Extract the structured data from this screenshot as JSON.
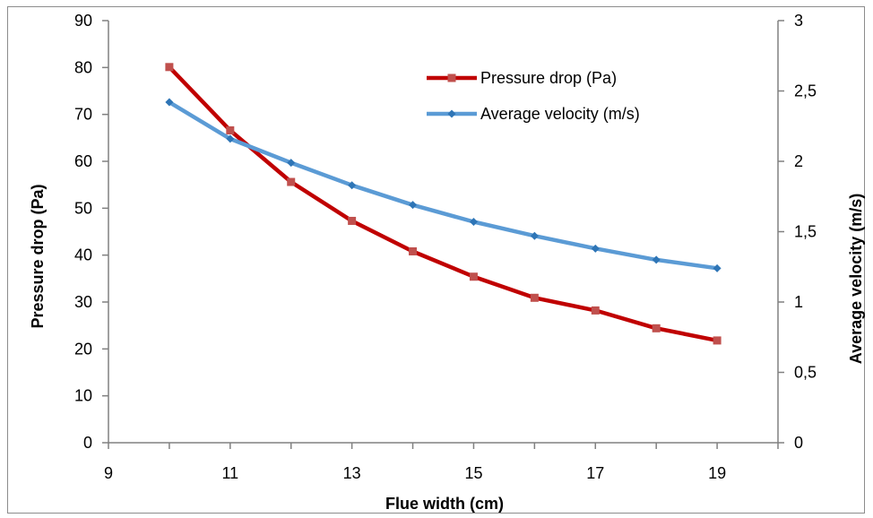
{
  "chart_data": {
    "type": "line",
    "title": "",
    "xlabel": "Flue width (cm)",
    "ylabel": "Pressure drop (Pa)",
    "y2label": "Average velocity (m/s)",
    "xlim": [
      9,
      20
    ],
    "ylim": [
      0,
      90
    ],
    "y2lim": [
      0,
      3
    ],
    "x_ticks": [
      "9",
      "11",
      "13",
      "15",
      "17",
      "19"
    ],
    "y_ticks": [
      "0",
      "10",
      "20",
      "30",
      "40",
      "50",
      "60",
      "70",
      "80",
      "90"
    ],
    "y2_ticks": [
      "0",
      "0,5",
      "1",
      "1,5",
      "2",
      "2,5",
      "3"
    ],
    "grid": false,
    "legend_position": "top-right inside plot",
    "x": [
      10,
      11,
      12,
      13,
      14,
      15,
      16,
      17,
      18,
      19
    ],
    "series": [
      {
        "name": "Pressure drop (Pa)",
        "axis": "left",
        "color": "#C00000",
        "marker_color": "#C0504D",
        "marker": "square",
        "values": [
          80.1,
          66.6,
          55.6,
          47.3,
          40.8,
          35.4,
          30.9,
          28.2,
          24.4,
          21.8
        ]
      },
      {
        "name": "Average velocity (m/s)",
        "axis": "right",
        "color": "#5B9BD5",
        "marker_color": "#2E75B6",
        "marker": "diamond",
        "values": [
          2.42,
          2.16,
          1.99,
          1.83,
          1.69,
          1.57,
          1.47,
          1.38,
          1.3,
          1.24
        ]
      }
    ]
  },
  "colors": {
    "axis": "#808080",
    "frame": "#8c8c8c",
    "text": "#000000"
  }
}
